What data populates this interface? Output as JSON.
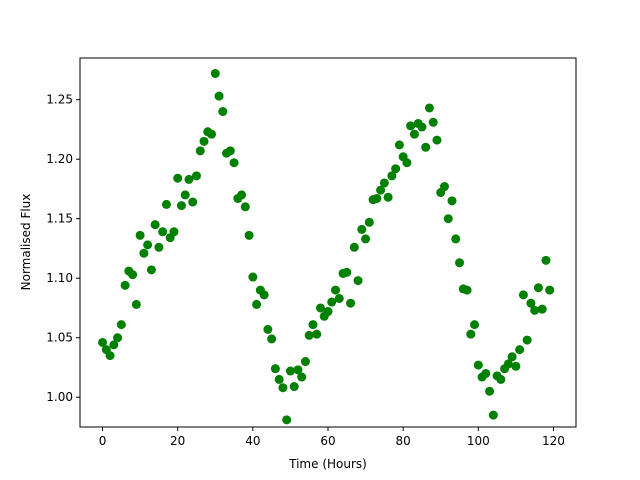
{
  "chart_data": {
    "type": "scatter",
    "xlabel": "Time (Hours)",
    "ylabel": "Normalised Flux",
    "xlim": [
      -6,
      126
    ],
    "ylim": [
      0.975,
      1.285
    ],
    "xticks": [
      0,
      20,
      40,
      60,
      80,
      100,
      120
    ],
    "yticks": [
      1.0,
      1.05,
      1.1,
      1.15,
      1.2,
      1.25
    ],
    "xtick_labels": [
      "0",
      "20",
      "40",
      "60",
      "80",
      "100",
      "120"
    ],
    "ytick_labels": [
      "1.00",
      "1.05",
      "1.10",
      "1.15",
      "1.20",
      "1.25"
    ],
    "grid": false,
    "marker_color": "#008000",
    "series": [
      {
        "x": [
          0,
          1,
          2,
          3,
          4,
          5,
          6,
          7,
          8,
          9,
          10,
          11,
          12,
          13,
          14,
          15,
          16,
          17,
          18,
          19,
          20,
          21,
          22,
          23,
          24,
          25,
          26,
          27,
          28,
          29,
          30,
          31,
          32,
          33,
          34,
          35,
          36,
          37,
          38,
          39,
          40,
          41,
          42,
          43,
          44,
          45,
          46,
          47,
          48,
          49,
          50,
          51,
          52,
          53,
          54,
          55,
          56,
          57,
          58,
          59,
          60,
          61,
          62,
          63,
          64,
          65,
          66,
          67,
          68,
          69,
          70,
          71,
          72,
          73,
          74,
          75,
          76,
          77,
          78,
          79,
          80,
          81,
          82,
          83,
          84,
          85,
          86,
          87,
          88,
          89,
          90,
          91,
          92,
          93,
          94,
          95,
          96,
          97,
          98,
          99,
          100,
          101,
          102,
          103,
          104,
          105,
          106,
          107,
          108,
          109,
          110,
          111,
          112,
          113,
          114,
          115,
          116,
          117,
          118,
          119
        ],
        "y": [
          1.046,
          1.04,
          1.035,
          1.044,
          1.05,
          1.061,
          1.094,
          1.106,
          1.103,
          1.078,
          1.136,
          1.121,
          1.128,
          1.107,
          1.145,
          1.126,
          1.139,
          1.162,
          1.134,
          1.139,
          1.184,
          1.161,
          1.17,
          1.183,
          1.164,
          1.186,
          1.207,
          1.215,
          1.223,
          1.221,
          1.272,
          1.253,
          1.24,
          1.205,
          1.207,
          1.197,
          1.167,
          1.17,
          1.16,
          1.136,
          1.101,
          1.078,
          1.09,
          1.086,
          1.057,
          1.049,
          1.024,
          1.015,
          1.008,
          0.981,
          1.022,
          1.009,
          1.023,
          1.017,
          1.03,
          1.052,
          1.061,
          1.053,
          1.075,
          1.068,
          1.072,
          1.08,
          1.09,
          1.083,
          1.104,
          1.105,
          1.079,
          1.126,
          1.098,
          1.141,
          1.133,
          1.147,
          1.166,
          1.167,
          1.174,
          1.18,
          1.168,
          1.186,
          1.192,
          1.212,
          1.202,
          1.197,
          1.228,
          1.221,
          1.23,
          1.227,
          1.21,
          1.243,
          1.231,
          1.216,
          1.172,
          1.177,
          1.15,
          1.165,
          1.133,
          1.113,
          1.091,
          1.09,
          1.053,
          1.061,
          1.027,
          1.017,
          1.02,
          1.005,
          0.985,
          1.018,
          1.015,
          1.024,
          1.028,
          1.034,
          1.026,
          1.04,
          1.086,
          1.048,
          1.079,
          1.073,
          1.092,
          1.074,
          1.115,
          1.09
        ]
      }
    ]
  }
}
